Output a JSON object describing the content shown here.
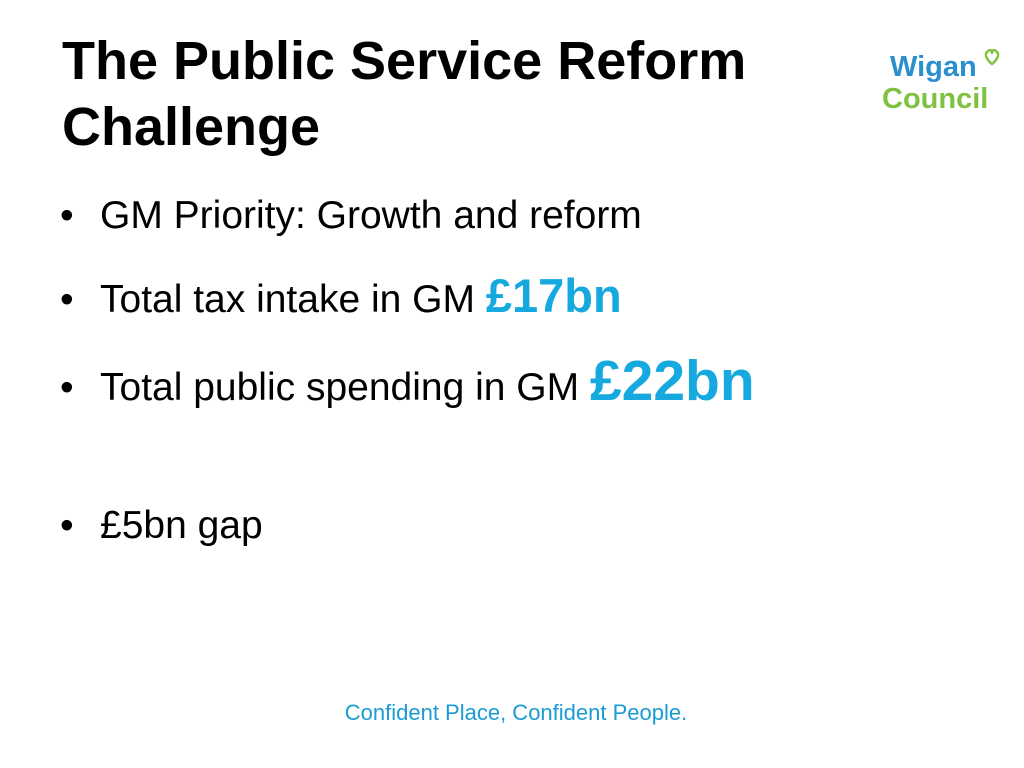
{
  "slide": {
    "title_lines": [
      "The Public Service Reform",
      "Challenge"
    ],
    "bullets": [
      {
        "text": "GM Priority: Growth and reform",
        "highlight": ""
      },
      {
        "text": "Total tax intake in GM ",
        "highlight": "£17bn"
      },
      {
        "text": "Total public spending in GM ",
        "highlight": "£22bn"
      },
      {
        "text": "£5bn gap",
        "highlight": ""
      }
    ],
    "bullet_char": "•",
    "footer": "Confident Place, Confident People."
  },
  "logo": {
    "line1": "Wigan",
    "line2": "Council",
    "icon": "heart-icon"
  },
  "colors": {
    "highlight": "#16a9e0",
    "footer": "#1a9bd3",
    "logo_blue": "#2a8fcf",
    "logo_green": "#7fc241"
  }
}
